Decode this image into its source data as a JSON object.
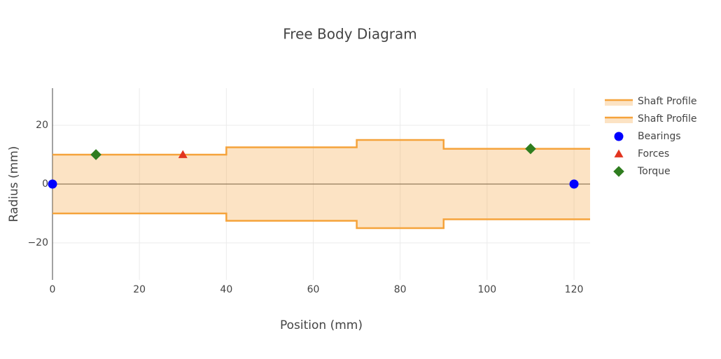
{
  "chart_data": {
    "type": "scatter",
    "title": "Free Body Diagram",
    "xlabel": "Position (mm)",
    "ylabel": "Radius (mm)",
    "xlim": [
      0,
      123.7
    ],
    "ylim": [
      -32.6,
      32.6
    ],
    "xticks": [
      0,
      20,
      40,
      60,
      80,
      100,
      120
    ],
    "yticks": [
      {
        "value": -20,
        "label": "−20"
      },
      0,
      20
    ],
    "grid": true,
    "series": [
      {
        "name": "Shaft Profile",
        "mode": "lines",
        "fill": true,
        "color": "#f5a33b",
        "x": [
          0,
          40,
          40,
          70,
          70,
          90,
          90,
          125
        ],
        "values": [
          10,
          10,
          12.5,
          12.5,
          15,
          15,
          12,
          12
        ]
      },
      {
        "name": "Shaft Profile",
        "mode": "lines",
        "fill": true,
        "color": "#f5a33b",
        "x": [
          0,
          40,
          40,
          70,
          70,
          90,
          90,
          125
        ],
        "values": [
          -10,
          -10,
          -12.5,
          -12.5,
          -15,
          -15,
          -12,
          -12
        ]
      },
      {
        "name": "Bearings",
        "mode": "markers",
        "symbol": "circle",
        "color": "#0000ff",
        "x": [
          0,
          120
        ],
        "values": [
          0,
          0
        ]
      },
      {
        "name": "Forces",
        "mode": "markers",
        "symbol": "triangle",
        "color": "#e2341f",
        "x": [
          30
        ],
        "values": [
          10
        ]
      },
      {
        "name": "Torque",
        "mode": "markers",
        "symbol": "diamond",
        "color": "#2f7d1f",
        "x": [
          10,
          110
        ],
        "values": [
          10,
          12
        ]
      }
    ]
  }
}
